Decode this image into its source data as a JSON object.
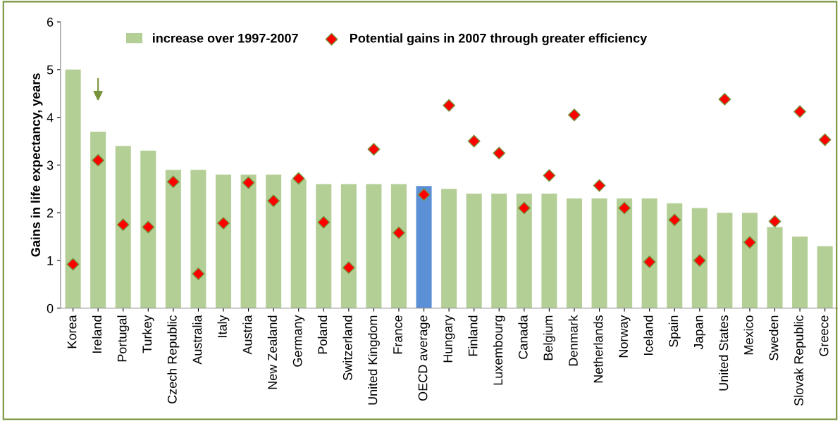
{
  "chart_data": {
    "type": "bar",
    "ylabel": "Gains in life expectancy, years",
    "categories": [
      "Korea",
      "Ireland",
      "Portugal",
      "Turkey",
      "Czech Republic",
      "Australia",
      "Italy",
      "Austria",
      "New Zealand",
      "Germany",
      "Poland",
      "Switzerland",
      "United Kingdom",
      "France",
      "OECD average",
      "Hungary",
      "Finland",
      "Luxembourg",
      "Canada",
      "Belgium",
      "Denmark",
      "Netherlands",
      "Norway",
      "Iceland",
      "Spain",
      "Japan",
      "United States",
      "Mexico",
      "Sweden",
      "Slovak Republic",
      "Greece"
    ],
    "series": [
      {
        "name": "increase over 1997-2007",
        "color": "#b3cf96",
        "colors": [
          "#b3cf96",
          "#b3cf96",
          "#b3cf96",
          "#b3cf96",
          "#b3cf96",
          "#b3cf96",
          "#b3cf96",
          "#b3cf96",
          "#b3cf96",
          "#b3cf96",
          "#b3cf96",
          "#b3cf96",
          "#b3cf96",
          "#b3cf96",
          "#5b8fd6",
          "#b3cf96",
          "#b3cf96",
          "#b3cf96",
          "#b3cf96",
          "#b3cf96",
          "#b3cf96",
          "#b3cf96",
          "#b3cf96",
          "#b3cf96",
          "#b3cf96",
          "#b3cf96",
          "#b3cf96",
          "#b3cf96",
          "#b3cf96",
          "#b3cf96",
          "#b3cf96"
        ],
        "values": [
          5.0,
          3.7,
          3.4,
          3.3,
          2.9,
          2.9,
          2.8,
          2.8,
          2.8,
          2.7,
          2.6,
          2.6,
          2.6,
          2.6,
          2.56,
          2.5,
          2.4,
          2.4,
          2.4,
          2.4,
          2.3,
          2.3,
          2.3,
          2.3,
          2.2,
          2.1,
          2.0,
          2.0,
          1.7,
          1.5,
          1.3
        ]
      },
      {
        "name": "Potential gains in 2007 through greater efficiency",
        "type": "scatter",
        "marker": "diamond",
        "color": "#ff0000",
        "values": [
          0.92,
          3.1,
          1.75,
          1.7,
          2.65,
          0.72,
          1.78,
          2.63,
          2.25,
          2.72,
          1.8,
          0.85,
          3.33,
          1.58,
          2.38,
          4.25,
          3.5,
          3.25,
          2.1,
          2.78,
          4.05,
          2.57,
          2.1,
          0.97,
          1.85,
          1.0,
          4.38,
          1.38,
          1.82,
          4.12,
          3.53
        ]
      }
    ],
    "ylim": [
      0,
      6
    ],
    "yticks": [
      0,
      1,
      2,
      3,
      4,
      5,
      6
    ],
    "grid": false,
    "legend": "top"
  }
}
